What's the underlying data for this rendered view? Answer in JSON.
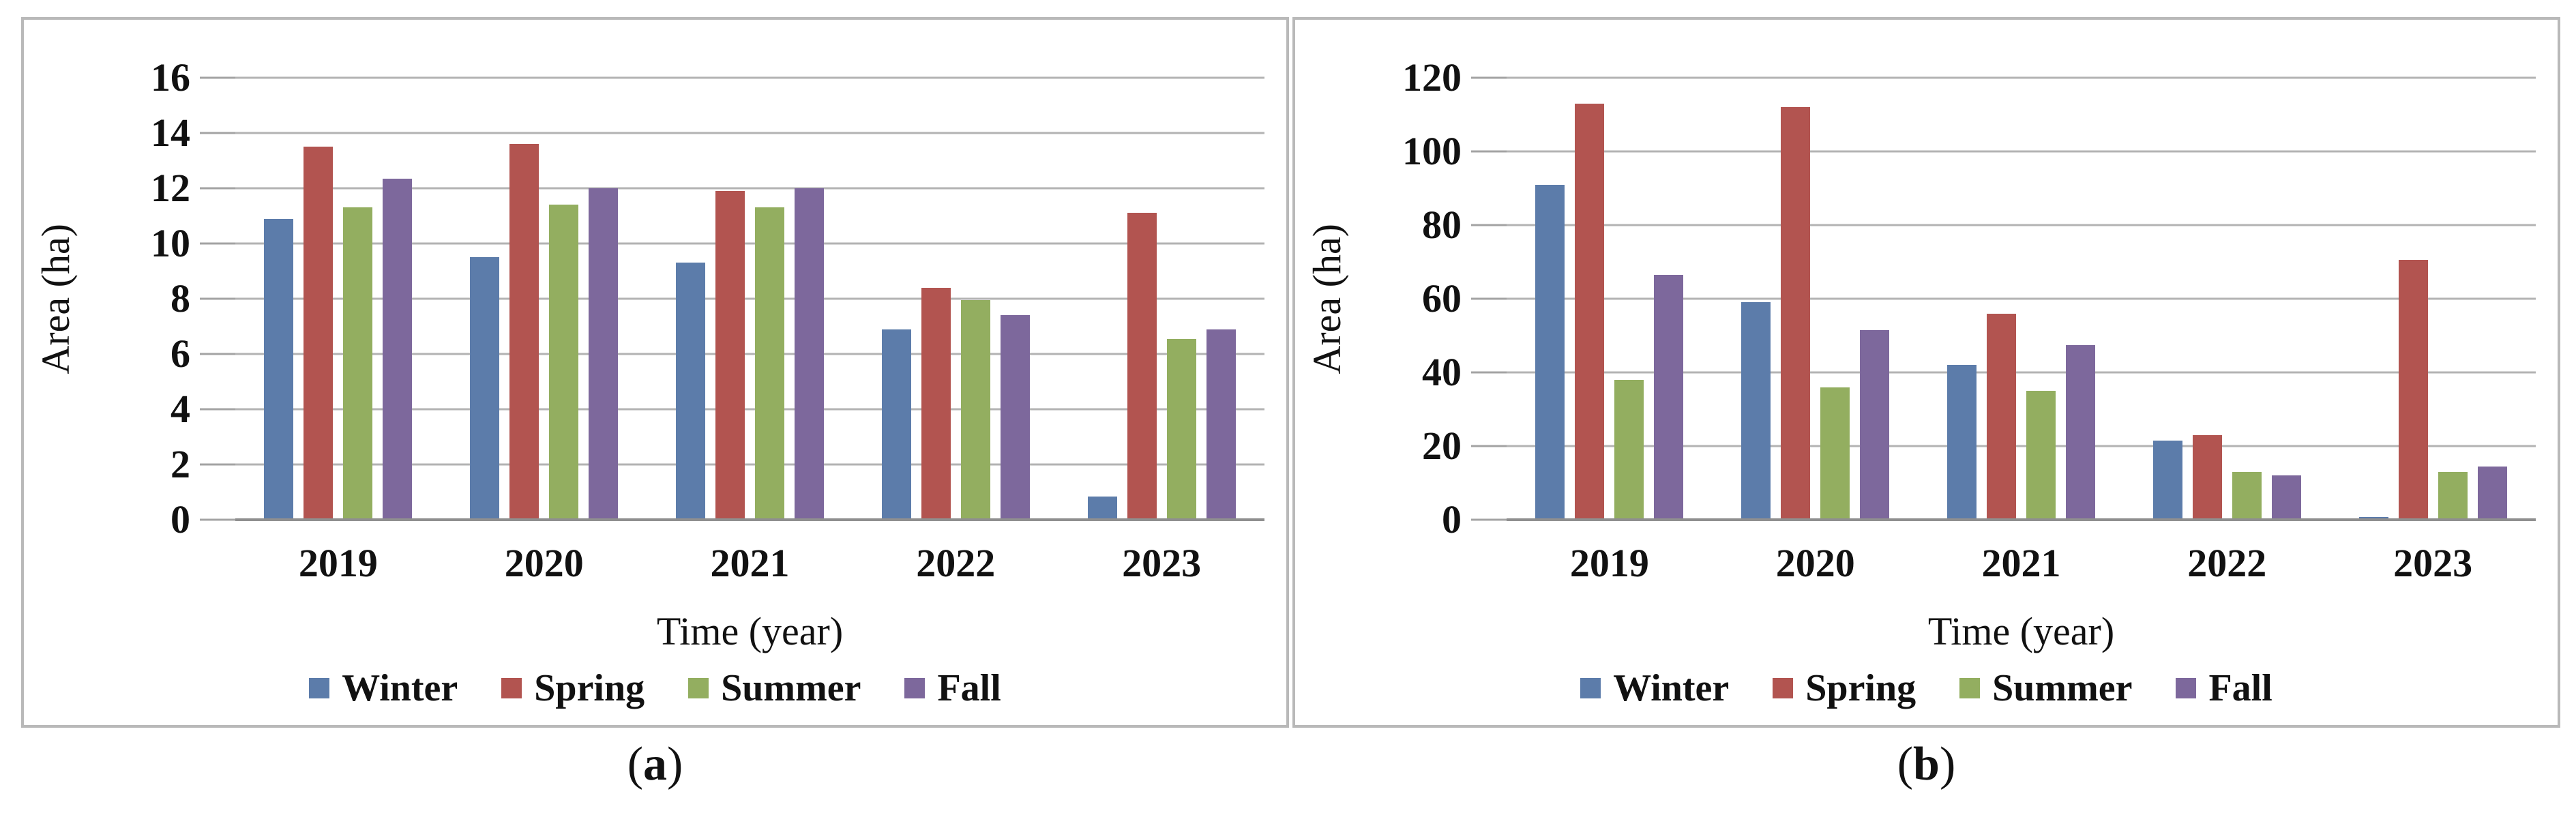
{
  "figure": {
    "captions": {
      "a": {
        "open": "(",
        "letter": "a",
        "close": ")"
      },
      "b": {
        "open": "(",
        "letter": "b",
        "close": ")"
      }
    }
  },
  "colors": {
    "winter": "#5C7CAA",
    "spring": "#B25450",
    "summer": "#93AE60",
    "fall": "#7D689C",
    "gridline": "#B3B3B3",
    "axis_line": "#8F8F8F",
    "panel_border": "#B9B9B9"
  },
  "chart_data": [
    {
      "panel": "a",
      "type": "bar",
      "title": "",
      "xlabel": "Time (year)",
      "ylabel": "Area (ha)",
      "categories": [
        "2019",
        "2020",
        "2021",
        "2022",
        "2023"
      ],
      "series": [
        {
          "name": "Winter",
          "color": "#5C7CAA",
          "values": [
            10.9,
            9.5,
            9.3,
            6.9,
            0.85
          ]
        },
        {
          "name": "Spring",
          "color": "#B25450",
          "values": [
            13.5,
            13.6,
            11.9,
            8.4,
            11.1
          ]
        },
        {
          "name": "Summer",
          "color": "#93AE60",
          "values": [
            11.3,
            11.4,
            11.3,
            7.95,
            6.55
          ]
        },
        {
          "name": "Fall",
          "color": "#7D689C",
          "values": [
            12.35,
            12.0,
            12.0,
            7.4,
            6.9
          ]
        }
      ],
      "ylim": [
        0,
        16
      ],
      "ytick_step": 2,
      "yticks": [
        0,
        2,
        4,
        6,
        8,
        10,
        12,
        14,
        16
      ],
      "grid": true,
      "legend_position": "bottom"
    },
    {
      "panel": "b",
      "type": "bar",
      "title": "",
      "xlabel": "Time (year)",
      "ylabel": "Area (ha)",
      "categories": [
        "2019",
        "2020",
        "2021",
        "2022",
        "2023"
      ],
      "series": [
        {
          "name": "Winter",
          "color": "#5C7CAA",
          "values": [
            91,
            59,
            42,
            21.5,
            0.8
          ]
        },
        {
          "name": "Spring",
          "color": "#B25450",
          "values": [
            113,
            112,
            56,
            23,
            70.5
          ]
        },
        {
          "name": "Summer",
          "color": "#93AE60",
          "values": [
            38,
            36,
            35,
            13,
            13
          ]
        },
        {
          "name": "Fall",
          "color": "#7D689C",
          "values": [
            66.5,
            51.5,
            47.5,
            12,
            14.5
          ]
        }
      ],
      "ylim": [
        0,
        120
      ],
      "ytick_step": 20,
      "yticks": [
        0,
        20,
        40,
        60,
        80,
        100,
        120
      ],
      "grid": true,
      "legend_position": "bottom"
    }
  ]
}
